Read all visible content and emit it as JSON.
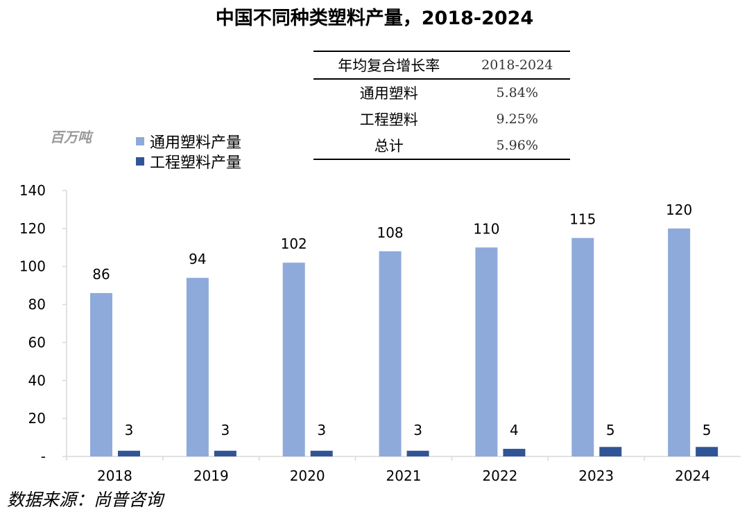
{
  "title": "中国不同种类塑料产量，2018-2024",
  "unit_label": "百万吨",
  "legend": [
    {
      "label": "通用塑料产量",
      "color": "#8eaadb"
    },
    {
      "label": "工程塑料产量",
      "color": "#2f5597"
    }
  ],
  "cagr_table": {
    "header": [
      "年均复合增长率",
      "2018-2024"
    ],
    "rows": [
      {
        "label": "通用塑料",
        "value": "5.84%"
      },
      {
        "label": "工程塑料",
        "value": "9.25%"
      },
      {
        "label": "总计",
        "value": "5.96%"
      }
    ]
  },
  "source": "数据来源：尚普咨询",
  "chart_data": {
    "type": "bar",
    "title": "中国不同种类塑料产量，2018-2024",
    "categories": [
      "2018",
      "2019",
      "2020",
      "2021",
      "2022",
      "2023",
      "2024"
    ],
    "series": [
      {
        "name": "通用塑料产量",
        "values": [
          86,
          94,
          102,
          108,
          110,
          115,
          120
        ],
        "color": "#8eaadb"
      },
      {
        "name": "工程塑料产量",
        "values": [
          3,
          3,
          3,
          3,
          4,
          5,
          5
        ],
        "color": "#2f5597"
      }
    ],
    "ylim": [
      0,
      140
    ],
    "yticks": [
      0,
      20,
      40,
      60,
      80,
      100,
      120,
      140
    ],
    "ytick_labels": [
      "-",
      "20",
      "40",
      "60",
      "80",
      "100",
      "120",
      "140"
    ],
    "grid": false,
    "legend_position": "top-left",
    "data_labels": true
  }
}
